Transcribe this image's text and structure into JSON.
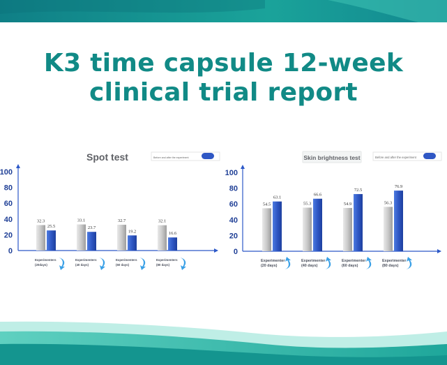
{
  "page": {
    "title_line1": "K3 time capsule 12-week",
    "title_line2": "clinical trial report",
    "accent_color": "#118a86"
  },
  "chart_data": [
    {
      "type": "bar",
      "title": "Spot test",
      "legend": "Before and after the experiment",
      "legend_position": "top-right",
      "categories": [
        "Experimenters (20 days)",
        "Experimenters (40 days)",
        "Experimenters (60 days)",
        "Experimenters (80 days)"
      ],
      "category_lines": [
        [
          "Experimenters",
          "(20days)"
        ],
        [
          "Experimenters",
          "(40 days)"
        ],
        [
          "Experimenters",
          "(60 days)"
        ],
        [
          "Experimenters",
          "(80 days)"
        ]
      ],
      "series": [
        {
          "name": "Before",
          "values": [
            32.3,
            33.1,
            32.7,
            32.1
          ],
          "color": "#c9c9c9"
        },
        {
          "name": "After",
          "values": [
            25.5,
            23.7,
            19.2,
            16.6
          ],
          "color": "#2f57c4"
        }
      ],
      "ylim": [
        0,
        100
      ],
      "yticks": [
        0,
        20,
        40,
        60,
        80,
        100
      ],
      "arrow": "down"
    },
    {
      "type": "bar",
      "title": "Skin brightness test",
      "legend": "Before and after the experiment",
      "legend_position": "top-right",
      "categories": [
        "Experimenter (20 days)",
        "Experimenter (40 days)",
        "Experimenter (60 days)",
        "Experimenter (80 days)"
      ],
      "category_lines": [
        [
          "Experimenter",
          "(20 days)"
        ],
        [
          "Experimenter",
          "(40 days)"
        ],
        [
          "Experimenter",
          "(60 days)"
        ],
        [
          "Experimenter",
          "(80 days)"
        ]
      ],
      "series": [
        {
          "name": "Before",
          "values": [
            54.5,
            55.3,
            54.9,
            56.3
          ],
          "color": "#c9c9c9"
        },
        {
          "name": "After",
          "values": [
            63.1,
            66.6,
            72.5,
            76.9
          ],
          "color": "#2f57c4"
        }
      ],
      "ylim": [
        0,
        100
      ],
      "yticks": [
        0,
        20,
        40,
        60,
        80,
        100
      ],
      "arrow": "up"
    }
  ]
}
